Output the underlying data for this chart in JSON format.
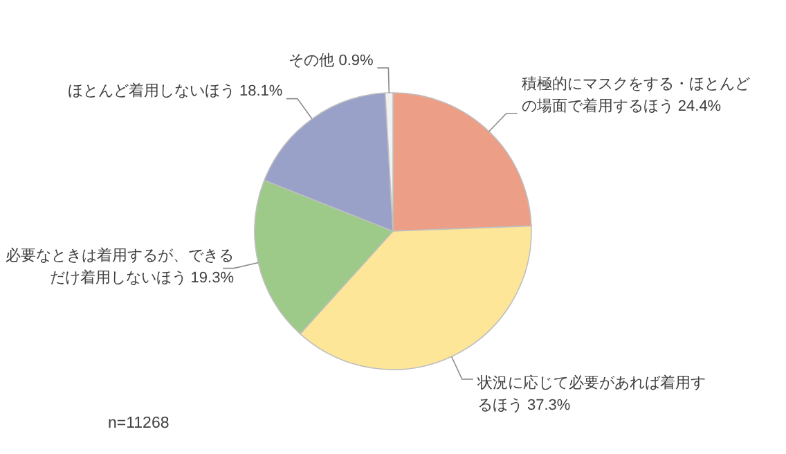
{
  "chart_data": {
    "type": "pie",
    "categories": [
      "積極的にマスクをする・ほとんどの場面で着用するほう",
      "状況に応じて必要があれば着用するほう",
      "必要なときは着用するが、できるだけ着用しないほう",
      "ほとんど着用しないほう",
      "その他"
    ],
    "values": [
      24.4,
      37.3,
      19.3,
      18.1,
      0.9
    ],
    "colors": [
      "#ed9e86",
      "#fee698",
      "#9dca88",
      "#99a1c9",
      "#f2f2f2"
    ],
    "value_labels": [
      "24.4%",
      "37.3%",
      "19.3%",
      "18.1%",
      "0.9%"
    ],
    "annotations": [
      "n=11268"
    ],
    "legend": false
  }
}
